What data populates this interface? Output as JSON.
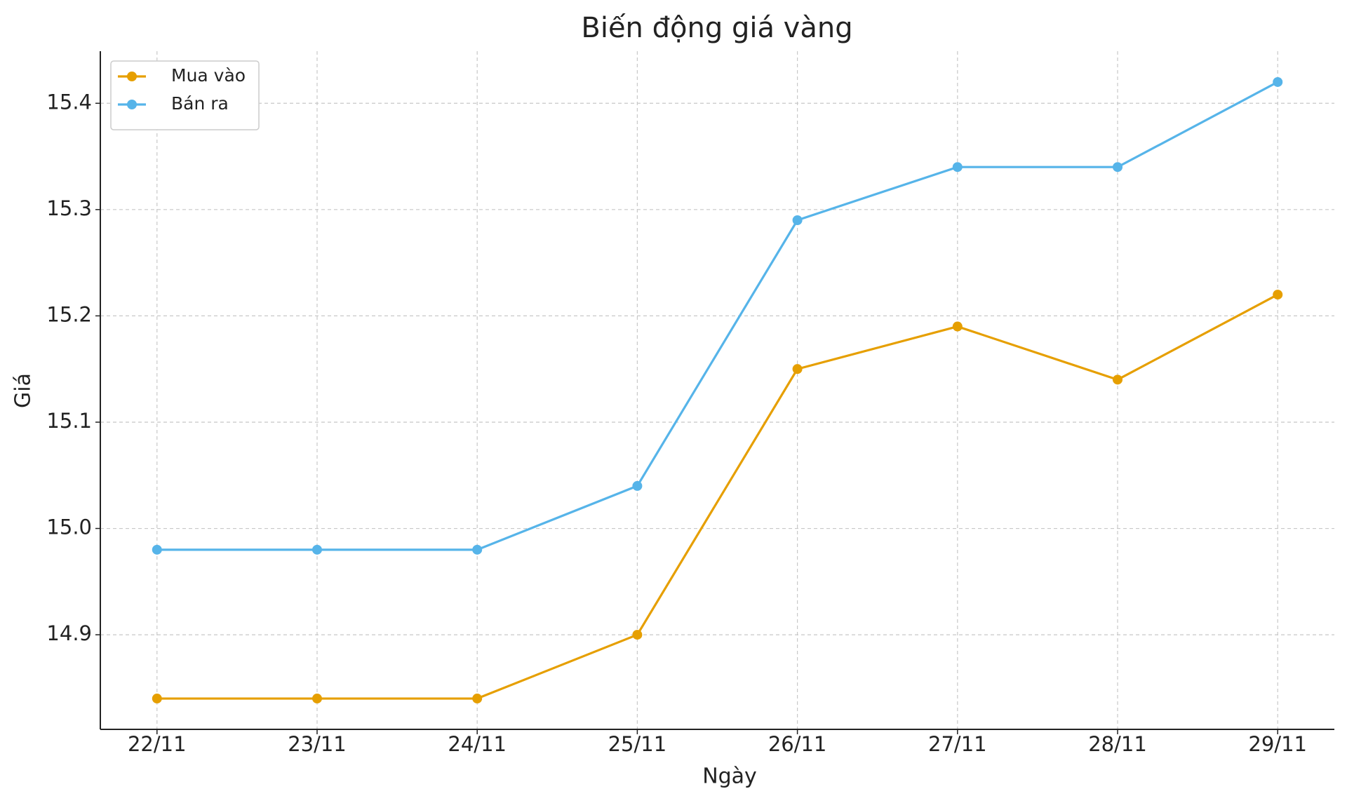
{
  "chart_data": {
    "type": "line",
    "title": "Biến động giá vàng",
    "x_label": "Ngày",
    "y_label": "Giá",
    "categories": [
      "22/11",
      "23/11",
      "24/11",
      "25/11",
      "26/11",
      "27/11",
      "28/11",
      "29/11"
    ],
    "series": [
      {
        "name": "Mua vào",
        "color": "#E69F00",
        "values": [
          14.84,
          14.84,
          14.84,
          14.9,
          15.15,
          15.19,
          15.14,
          15.22
        ]
      },
      {
        "name": "Bán ra",
        "color": "#56B4E9",
        "values": [
          14.98,
          14.98,
          14.98,
          15.04,
          15.29,
          15.34,
          15.34,
          15.42
        ]
      }
    ],
    "ylim": [
      14.811,
      15.449
    ],
    "yticks": [
      14.9,
      {
        "value": 15,
        "label": "15.0"
      },
      15.1,
      15.2,
      15.3,
      15.4
    ],
    "grid": true,
    "legend": "upper left"
  }
}
